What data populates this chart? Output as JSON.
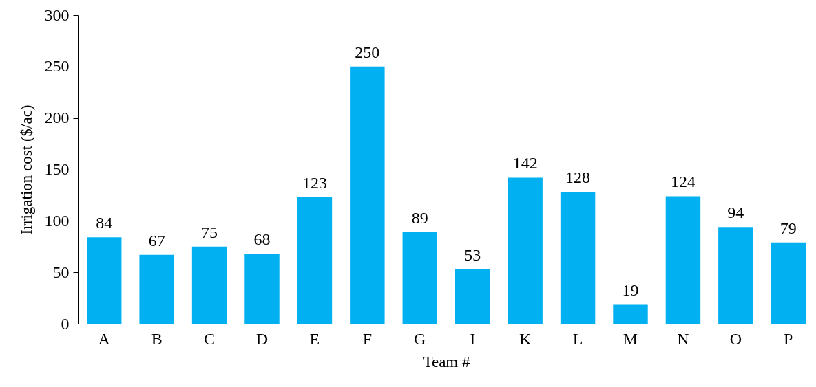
{
  "chart_data": {
    "type": "bar",
    "xlabel": "Team #",
    "ylabel": "Irrigation cost ($/ac)",
    "categories": [
      "A",
      "B",
      "C",
      "D",
      "E",
      "F",
      "G",
      "I",
      "K",
      "L",
      "M",
      "N",
      "O",
      "P"
    ],
    "values": [
      84,
      67,
      75,
      68,
      123,
      250,
      89,
      53,
      142,
      128,
      19,
      124,
      94,
      79
    ],
    "color": "#00b0f0",
    "ylim": [
      0,
      300
    ],
    "yticks": [
      0,
      50,
      100,
      150,
      200,
      250,
      300
    ],
    "grid": false,
    "data_labels": true
  }
}
